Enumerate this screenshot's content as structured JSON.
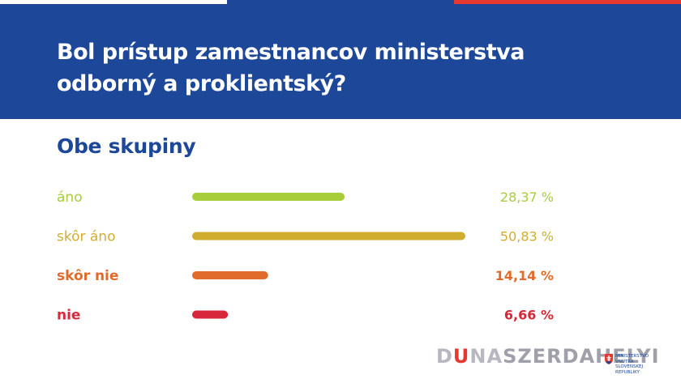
{
  "header": {
    "title_line1": "Bol prístup zamestnancov ministerstva",
    "title_line2": "odborný a proklientský?"
  },
  "subtitle": "Obe skupiny",
  "colors": {
    "header_bg": "#1d4799",
    "stripe": [
      "#ffffff",
      "#1d4799",
      "#e8372e"
    ]
  },
  "chart_data": {
    "type": "bar",
    "orientation": "horizontal",
    "categories": [
      "áno",
      "skôr áno",
      "skôr nie",
      "nie"
    ],
    "values": [
      28.37,
      50.83,
      14.14,
      6.66
    ],
    "value_labels": [
      "28,37 %",
      "50,83 %",
      "14,14 %",
      "6,66 %"
    ],
    "colors": [
      "#a8cd3a",
      "#d0ad2e",
      "#e06b2a",
      "#d8263a"
    ],
    "title": "",
    "xlim": [
      0,
      50.83
    ],
    "grid": false
  },
  "footer": {
    "logo_part1": "D",
    "logo_part2": "U",
    "logo_part3": "NA",
    "logo_part4": "SZERDAHELYI",
    "ministry_line1": "MINISTERSTVO",
    "ministry_line2": "VNÚTRA",
    "ministry_line3": "SLOVENSKEJ REPUBLIKY"
  }
}
